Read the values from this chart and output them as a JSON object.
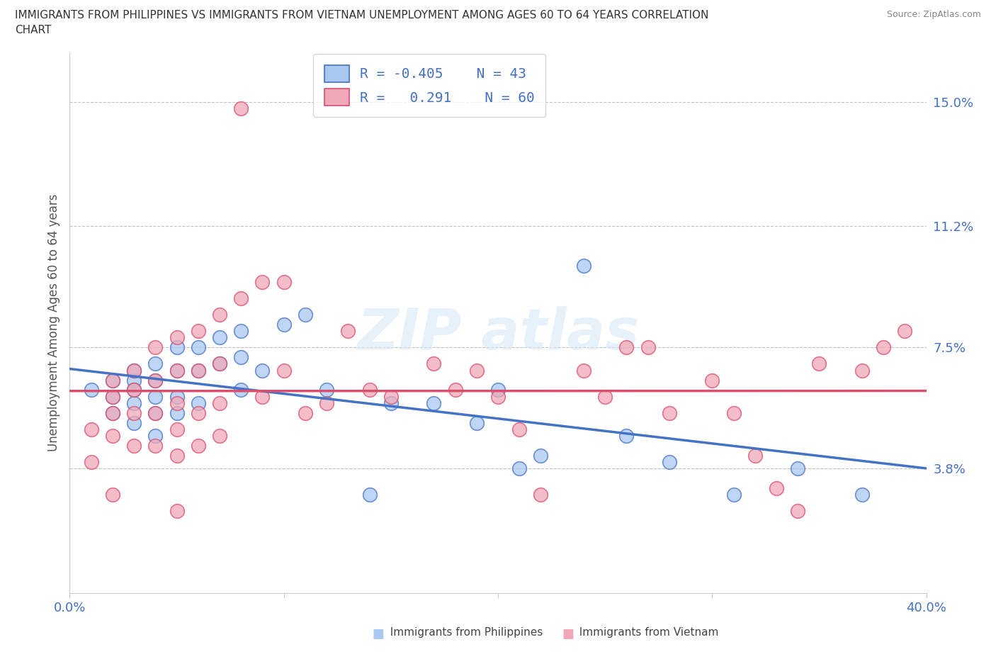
{
  "title_line1": "IMMIGRANTS FROM PHILIPPINES VS IMMIGRANTS FROM VIETNAM UNEMPLOYMENT AMONG AGES 60 TO 64 YEARS CORRELATION",
  "title_line2": "CHART",
  "source": "Source: ZipAtlas.com",
  "ylabel": "Unemployment Among Ages 60 to 64 years",
  "xlim": [
    0.0,
    0.4
  ],
  "ylim": [
    0.0,
    0.165
  ],
  "yticks": [
    0.038,
    0.075,
    0.112,
    0.15
  ],
  "ytick_labels": [
    "3.8%",
    "7.5%",
    "11.2%",
    "15.0%"
  ],
  "xticks": [
    0.0,
    0.1,
    0.2,
    0.3,
    0.4
  ],
  "color_philippines": "#a8c8f0",
  "color_vietnam": "#f0a8b8",
  "color_line_philippines": "#4472c4",
  "color_line_vietnam": "#d94f6e",
  "color_text_blue": "#4472c4",
  "background_color": "#ffffff",
  "philippines_x": [
    0.01,
    0.02,
    0.02,
    0.02,
    0.03,
    0.03,
    0.03,
    0.03,
    0.03,
    0.04,
    0.04,
    0.04,
    0.04,
    0.04,
    0.05,
    0.05,
    0.05,
    0.05,
    0.06,
    0.06,
    0.06,
    0.07,
    0.07,
    0.08,
    0.08,
    0.08,
    0.09,
    0.1,
    0.11,
    0.12,
    0.14,
    0.15,
    0.17,
    0.19,
    0.2,
    0.21,
    0.22,
    0.24,
    0.26,
    0.28,
    0.31,
    0.34,
    0.37
  ],
  "philippines_y": [
    0.062,
    0.065,
    0.06,
    0.055,
    0.065,
    0.068,
    0.062,
    0.058,
    0.052,
    0.07,
    0.065,
    0.06,
    0.055,
    0.048,
    0.075,
    0.068,
    0.06,
    0.055,
    0.075,
    0.068,
    0.058,
    0.078,
    0.07,
    0.08,
    0.072,
    0.062,
    0.068,
    0.082,
    0.085,
    0.062,
    0.03,
    0.058,
    0.058,
    0.052,
    0.062,
    0.038,
    0.042,
    0.1,
    0.048,
    0.04,
    0.03,
    0.038,
    0.03
  ],
  "vietnam_x": [
    0.01,
    0.01,
    0.02,
    0.02,
    0.02,
    0.02,
    0.02,
    0.03,
    0.03,
    0.03,
    0.03,
    0.04,
    0.04,
    0.04,
    0.04,
    0.05,
    0.05,
    0.05,
    0.05,
    0.05,
    0.05,
    0.06,
    0.06,
    0.06,
    0.06,
    0.07,
    0.07,
    0.07,
    0.07,
    0.08,
    0.08,
    0.09,
    0.09,
    0.1,
    0.1,
    0.11,
    0.12,
    0.13,
    0.14,
    0.15,
    0.17,
    0.18,
    0.19,
    0.2,
    0.21,
    0.22,
    0.24,
    0.25,
    0.26,
    0.27,
    0.28,
    0.3,
    0.31,
    0.32,
    0.33,
    0.34,
    0.35,
    0.37,
    0.38,
    0.39
  ],
  "vietnam_y": [
    0.05,
    0.04,
    0.065,
    0.06,
    0.055,
    0.048,
    0.03,
    0.068,
    0.062,
    0.055,
    0.045,
    0.075,
    0.065,
    0.055,
    0.045,
    0.078,
    0.068,
    0.058,
    0.05,
    0.042,
    0.025,
    0.08,
    0.068,
    0.055,
    0.045,
    0.085,
    0.07,
    0.058,
    0.048,
    0.148,
    0.09,
    0.095,
    0.06,
    0.068,
    0.095,
    0.055,
    0.058,
    0.08,
    0.062,
    0.06,
    0.07,
    0.062,
    0.068,
    0.06,
    0.05,
    0.03,
    0.068,
    0.06,
    0.075,
    0.075,
    0.055,
    0.065,
    0.055,
    0.042,
    0.032,
    0.025,
    0.07,
    0.068,
    0.075,
    0.08
  ]
}
